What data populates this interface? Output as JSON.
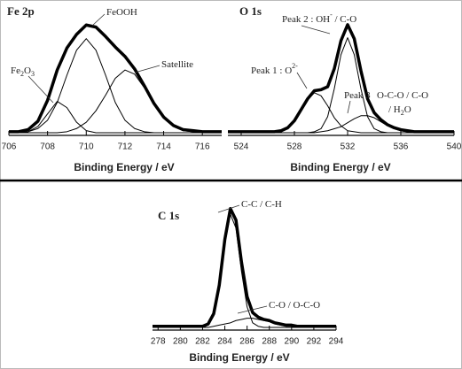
{
  "chart_data": [
    {
      "type": "line",
      "title": "Fe 2p",
      "xlabel": "Binding Energy / eV",
      "x": [
        706,
        706.5,
        707,
        707.5,
        708,
        708.5,
        709,
        709.5,
        710,
        710.5,
        711,
        711.5,
        712,
        712.5,
        713,
        713.5,
        714,
        714.5,
        715,
        715.5,
        716,
        716.5,
        717
      ],
      "xlim": [
        706,
        717
      ],
      "xticks": [
        706,
        708,
        710,
        712,
        714,
        716
      ],
      "ylim": [
        0,
        1.1
      ],
      "series": [
        {
          "color": "#000000",
          "line_width": 3.5,
          "values": [
            0.01,
            0.01,
            0.03,
            0.11,
            0.31,
            0.6,
            0.81,
            0.94,
            1.03,
            1.01,
            0.92,
            0.82,
            0.73,
            0.61,
            0.45,
            0.28,
            0.15,
            0.07,
            0.03,
            0.02,
            0.01,
            0.01,
            0.01
          ]
        },
        {
          "color": "#000000",
          "line_width": 1,
          "values": [
            0,
            0,
            0.01,
            0.06,
            0.18,
            0.3,
            0.24,
            0.1,
            0.02,
            0,
            0,
            0,
            0,
            0,
            0,
            0,
            0,
            0,
            0,
            0,
            0,
            0,
            0
          ]
        },
        {
          "color": "#000000",
          "line_width": 1,
          "values": [
            0,
            0,
            0.01,
            0.04,
            0.12,
            0.29,
            0.55,
            0.79,
            0.9,
            0.79,
            0.55,
            0.29,
            0.12,
            0.04,
            0.01,
            0,
            0,
            0,
            0,
            0,
            0,
            0,
            0
          ]
        },
        {
          "color": "#000000",
          "line_width": 1,
          "values": [
            0,
            0,
            0,
            0,
            0,
            0,
            0.01,
            0.04,
            0.1,
            0.21,
            0.36,
            0.52,
            0.6,
            0.56,
            0.43,
            0.27,
            0.14,
            0.06,
            0.02,
            0.01,
            0,
            0,
            0
          ]
        }
      ],
      "annotations": [
        {
          "segments": [
            {
              "text": "FeOOH"
            }
          ]
        },
        {
          "segments": [
            {
              "text": "Satellite"
            }
          ]
        },
        {
          "segments": [
            {
              "text": "Fe"
            },
            {
              "text": "2",
              "shift": "sub"
            },
            {
              "text": "O"
            },
            {
              "text": "3",
              "shift": "sub"
            }
          ]
        }
      ]
    },
    {
      "type": "line",
      "title": "O 1s",
      "xlabel": "Binding Energy / eV",
      "x": [
        523,
        523.5,
        524,
        524.5,
        525,
        525.5,
        526,
        526.5,
        527,
        527.5,
        528,
        528.5,
        529,
        529.5,
        530,
        530.5,
        531,
        531.5,
        532,
        532.5,
        533,
        533.5,
        534,
        534.5,
        535,
        535.5,
        536,
        536.5,
        537,
        537.5,
        538,
        538.5,
        539,
        539.5,
        540
      ],
      "xlim": [
        523,
        540
      ],
      "xticks": [
        524,
        528,
        532,
        536,
        540
      ],
      "ylim": [
        0,
        1.15
      ],
      "series": [
        {
          "color": "#000000",
          "line_width": 3.5,
          "values": [
            0.01,
            0.01,
            0.01,
            0.01,
            0.01,
            0.01,
            0.01,
            0.01,
            0.02,
            0.05,
            0.12,
            0.23,
            0.34,
            0.42,
            0.43,
            0.46,
            0.64,
            0.92,
            1.08,
            0.94,
            0.62,
            0.34,
            0.2,
            0.13,
            0.08,
            0.05,
            0.03,
            0.02,
            0.01,
            0.01,
            0.01,
            0.01,
            0.01,
            0.01,
            0.01
          ]
        },
        {
          "color": "#000000",
          "line_width": 1,
          "values": [
            0,
            0,
            0,
            0,
            0,
            0,
            0,
            0,
            0.01,
            0.04,
            0.11,
            0.22,
            0.33,
            0.4,
            0.37,
            0.27,
            0.15,
            0.07,
            0.02,
            0.01,
            0,
            0,
            0,
            0,
            0,
            0,
            0,
            0,
            0,
            0,
            0,
            0,
            0,
            0,
            0
          ]
        },
        {
          "color": "#000000",
          "line_width": 1,
          "values": [
            0,
            0,
            0,
            0,
            0,
            0,
            0,
            0,
            0,
            0,
            0,
            0,
            0,
            0.01,
            0.04,
            0.16,
            0.44,
            0.78,
            0.95,
            0.78,
            0.44,
            0.16,
            0.04,
            0.01,
            0,
            0,
            0,
            0,
            0,
            0,
            0,
            0,
            0,
            0,
            0
          ]
        },
        {
          "color": "#000000",
          "line_width": 1,
          "values": [
            0,
            0,
            0,
            0,
            0,
            0,
            0,
            0,
            0,
            0,
            0,
            0,
            0,
            0,
            0.01,
            0.02,
            0.04,
            0.06,
            0.1,
            0.14,
            0.17,
            0.17,
            0.15,
            0.11,
            0.07,
            0.04,
            0.02,
            0.01,
            0,
            0,
            0,
            0,
            0,
            0,
            0
          ]
        }
      ],
      "annotations": [
        {
          "segments": [
            {
              "text": "Peak 2 : OH"
            },
            {
              "text": "-",
              "shift": "super"
            },
            {
              "text": " / C-O"
            }
          ]
        },
        {
          "segments": [
            {
              "text": "Peak 1 : O"
            },
            {
              "text": "2-",
              "shift": "super"
            }
          ]
        },
        {
          "segments": [
            {
              "text": "Peak 3"
            }
          ]
        },
        {
          "segments": [
            {
              "text": "O-C-O / C-O"
            }
          ]
        },
        {
          "segments": [
            {
              "text": "/ H"
            },
            {
              "text": "2",
              "shift": "sub"
            },
            {
              "text": "O"
            }
          ]
        }
      ]
    },
    {
      "type": "line",
      "title": "C 1s",
      "xlabel": "Binding Energy / eV",
      "x": [
        277.5,
        278,
        278.5,
        279,
        279.5,
        280,
        280.5,
        281,
        281.5,
        282,
        282.5,
        283,
        283.5,
        284,
        284.5,
        285,
        285.5,
        286,
        286.5,
        287,
        287.5,
        288,
        288.5,
        289,
        289.5,
        290,
        290.5,
        291,
        291.5,
        292,
        292.5,
        293,
        293.5,
        294
      ],
      "xlim": [
        277.5,
        294
      ],
      "xticks": [
        278,
        280,
        282,
        284,
        286,
        288,
        290,
        292,
        294
      ],
      "ylim": [
        0,
        1.1
      ],
      "series": [
        {
          "color": "#000000",
          "line_width": 3.5,
          "values": [
            0.01,
            0.01,
            0.01,
            0.01,
            0.01,
            0.01,
            0.01,
            0.01,
            0.01,
            0.01,
            0.03,
            0.12,
            0.37,
            0.77,
            1.04,
            0.94,
            0.57,
            0.27,
            0.13,
            0.09,
            0.07,
            0.06,
            0.04,
            0.03,
            0.02,
            0.02,
            0.01,
            0.01,
            0.01,
            0.01,
            0.01,
            0.01,
            0.01,
            0.01
          ]
        },
        {
          "color": "#000000",
          "line_width": 1,
          "values": [
            0,
            0,
            0,
            0,
            0,
            0,
            0,
            0,
            0,
            0,
            0.02,
            0.1,
            0.34,
            0.73,
            0.99,
            0.87,
            0.49,
            0.18,
            0.04,
            0.01,
            0,
            0,
            0,
            0,
            0,
            0,
            0,
            0,
            0,
            0,
            0,
            0,
            0,
            0
          ]
        },
        {
          "color": "#000000",
          "line_width": 1,
          "values": [
            0,
            0,
            0,
            0,
            0,
            0,
            0,
            0,
            0,
            0,
            0,
            0.01,
            0.02,
            0.03,
            0.04,
            0.06,
            0.07,
            0.08,
            0.08,
            0.07,
            0.06,
            0.05,
            0.03,
            0.02,
            0.01,
            0.01,
            0,
            0,
            0,
            0,
            0,
            0,
            0,
            0
          ]
        }
      ],
      "annotations": [
        {
          "segments": [
            {
              "text": "C-C / C-H"
            }
          ]
        },
        {
          "segments": [
            {
              "text": "C-O / O-C-O"
            }
          ]
        }
      ]
    }
  ]
}
